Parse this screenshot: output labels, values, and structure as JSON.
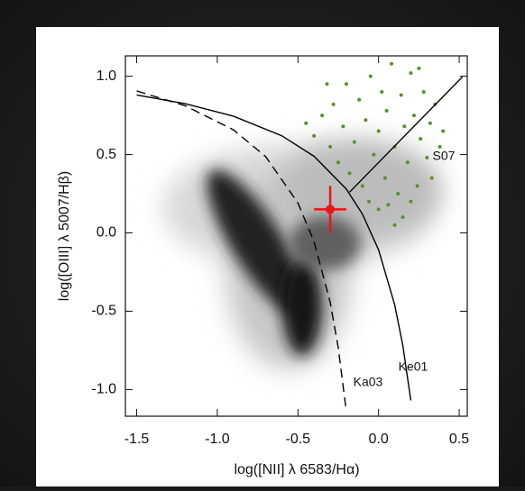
{
  "chart_data": {
    "type": "scatter",
    "xlabel": "log([NII] λ 6583/Hα)",
    "ylabel": "log([OIII] λ 5007/Hβ)",
    "xlim": [
      -1.57,
      0.55
    ],
    "ylim": [
      -1.17,
      1.13
    ],
    "xticks": [
      -1.5,
      {
        "value": -1,
        "label": "-1.0"
      },
      -0.5,
      {
        "value": 0,
        "label": "0.0"
      },
      0.5
    ],
    "yticks": [
      {
        "value": 1,
        "label": "1.0"
      },
      0.5,
      {
        "value": 0,
        "label": "0.0"
      },
      -0.5,
      {
        "value": -1,
        "label": "-1.0"
      }
    ],
    "lines": [
      {
        "name": "Ke01",
        "color": "#000000",
        "dash": false,
        "x": [
          -1.5,
          -1.2,
          -0.9,
          -0.6,
          -0.4,
          -0.2,
          -0.1,
          0.0,
          0.1,
          0.15,
          0.2
        ],
        "values": [
          0.88,
          0.825,
          0.745,
          0.62,
          0.489,
          0.28,
          0.12,
          -0.108,
          -0.459,
          -0.716,
          -1.069
        ]
      },
      {
        "name": "Ka03",
        "color": "#000000",
        "dash": true,
        "x": [
          -1.5,
          -1.2,
          -0.9,
          -0.7,
          -0.5,
          -0.4,
          -0.3,
          -0.25,
          -0.2
        ],
        "values": [
          0.906,
          0.812,
          0.658,
          0.487,
          0.191,
          -0.056,
          -0.443,
          -0.733,
          -1.14
        ]
      },
      {
        "name": "S07",
        "color": "#000000",
        "dash": false,
        "x": [
          -0.18,
          0.52
        ],
        "values": [
          0.26,
          0.996
        ]
      }
    ],
    "points": {
      "color": "#5a8f29",
      "x": [
        -0.4,
        -0.35,
        -0.3,
        -0.28,
        -0.25,
        -0.22,
        -0.2,
        -0.18,
        -0.15,
        -0.12,
        -0.1,
        -0.08,
        -0.05,
        -0.03,
        0.0,
        0.02,
        0.04,
        0.05,
        0.08,
        0.1,
        0.12,
        0.14,
        0.16,
        0.18,
        0.2,
        0.22,
        0.24,
        0.26,
        0.28,
        0.3,
        0.32,
        0.35,
        0.38,
        0.4,
        -0.06,
        0.0,
        0.06,
        0.1,
        0.15,
        -0.32,
        -0.45,
        0.2,
        0.25,
        0.33
      ],
      "values": [
        0.62,
        0.75,
        0.55,
        0.82,
        0.45,
        0.68,
        0.95,
        0.38,
        0.58,
        0.85,
        0.3,
        0.72,
        1.0,
        0.5,
        0.65,
        0.9,
        0.35,
        0.78,
        1.08,
        0.55,
        0.25,
        0.88,
        0.68,
        0.45,
        1.02,
        0.75,
        0.3,
        0.6,
        0.9,
        0.48,
        0.7,
        0.82,
        0.55,
        0.65,
        0.2,
        0.15,
        0.18,
        0.05,
        0.1,
        0.95,
        0.7,
        0.2,
        1.05,
        0.35
      ]
    },
    "highlight": {
      "color": "#e8141b",
      "x": [
        -0.3
      ],
      "values": [
        0.15
      ],
      "xerr": [
        0.1
      ],
      "yerr": [
        0.15
      ]
    }
  }
}
